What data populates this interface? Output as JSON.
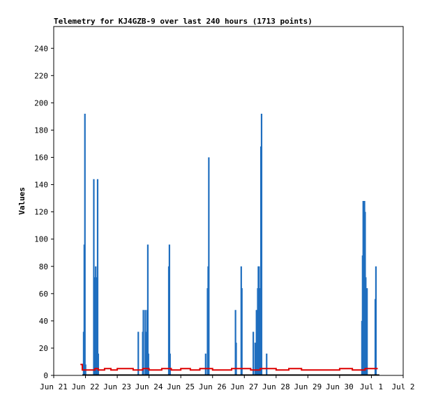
{
  "chart_data": {
    "type": "bar",
    "title": "Telemetry for KJ4GZB-9 over last 240 hours (1713 points)",
    "xlabel": "",
    "ylabel": "Values",
    "xlim": [
      "Jun 21",
      "Jul 2"
    ],
    "ylim": [
      0,
      256
    ],
    "x_ticks": [
      "Jun 21",
      "Jun 22",
      "Jun 23",
      "Jun 24",
      "Jun 25",
      "Jun 26",
      "Jun 27",
      "Jun 28",
      "Jun 29",
      "Jun 30",
      "Jul 1",
      "Jul 2"
    ],
    "y_ticks": [
      0,
      20,
      40,
      60,
      80,
      100,
      120,
      140,
      160,
      180,
      200,
      220,
      240
    ],
    "grid": false,
    "colors": {
      "bars": "#1f6ebf",
      "line": "#dd0000",
      "frame": "#000000",
      "baseline": "#000000"
    },
    "series": [
      {
        "type": "bar",
        "x_unit": "days since Jun 21",
        "points": [
          [
            0.94,
            32
          ],
          [
            0.96,
            96
          ],
          [
            0.98,
            192
          ],
          [
            1.0,
            8
          ],
          [
            1.26,
            144
          ],
          [
            1.28,
            64
          ],
          [
            1.3,
            72
          ],
          [
            1.32,
            80
          ],
          [
            1.34,
            72
          ],
          [
            1.36,
            8
          ],
          [
            1.38,
            144
          ],
          [
            1.4,
            16
          ],
          [
            2.66,
            32
          ],
          [
            2.8,
            32
          ],
          [
            2.82,
            48
          ],
          [
            2.88,
            48
          ],
          [
            2.92,
            32
          ],
          [
            2.94,
            48
          ],
          [
            2.96,
            96
          ],
          [
            2.98,
            16
          ],
          [
            3.62,
            80
          ],
          [
            3.64,
            96
          ],
          [
            3.66,
            16
          ],
          [
            4.78,
            16
          ],
          [
            4.84,
            64
          ],
          [
            4.86,
            80
          ],
          [
            4.88,
            160
          ],
          [
            5.72,
            48
          ],
          [
            5.74,
            24
          ],
          [
            5.9,
            80
          ],
          [
            5.92,
            64
          ],
          [
            6.28,
            32
          ],
          [
            6.34,
            24
          ],
          [
            6.38,
            48
          ],
          [
            6.42,
            64
          ],
          [
            6.44,
            80
          ],
          [
            6.46,
            80
          ],
          [
            6.48,
            64
          ],
          [
            6.5,
            64
          ],
          [
            6.52,
            168
          ],
          [
            6.54,
            192
          ],
          [
            6.7,
            16
          ],
          [
            9.7,
            40
          ],
          [
            9.72,
            88
          ],
          [
            9.74,
            128
          ],
          [
            9.76,
            80
          ],
          [
            9.78,
            128
          ],
          [
            9.8,
            120
          ],
          [
            9.82,
            72
          ],
          [
            9.84,
            48
          ],
          [
            9.86,
            64
          ],
          [
            10.12,
            56
          ],
          [
            10.14,
            80
          ]
        ]
      },
      {
        "type": "line",
        "x_unit": "days since Jun 21",
        "points": [
          [
            0.84,
            8
          ],
          [
            0.9,
            4
          ],
          [
            1.2,
            4
          ],
          [
            1.3,
            5
          ],
          [
            1.4,
            4
          ],
          [
            1.6,
            5
          ],
          [
            1.8,
            4
          ],
          [
            2.0,
            5
          ],
          [
            2.2,
            5
          ],
          [
            2.5,
            4
          ],
          [
            2.8,
            5
          ],
          [
            3.0,
            4
          ],
          [
            3.4,
            5
          ],
          [
            3.7,
            4
          ],
          [
            4.0,
            5
          ],
          [
            4.3,
            4
          ],
          [
            4.6,
            5
          ],
          [
            5.0,
            4
          ],
          [
            5.4,
            4
          ],
          [
            5.6,
            5
          ],
          [
            6.0,
            5
          ],
          [
            6.2,
            4
          ],
          [
            6.5,
            5
          ],
          [
            7.0,
            4
          ],
          [
            7.4,
            5
          ],
          [
            7.8,
            4
          ],
          [
            8.2,
            4
          ],
          [
            8.6,
            4
          ],
          [
            9.0,
            5
          ],
          [
            9.4,
            4
          ],
          [
            9.8,
            5
          ],
          [
            10.2,
            5
          ]
        ]
      }
    ]
  }
}
